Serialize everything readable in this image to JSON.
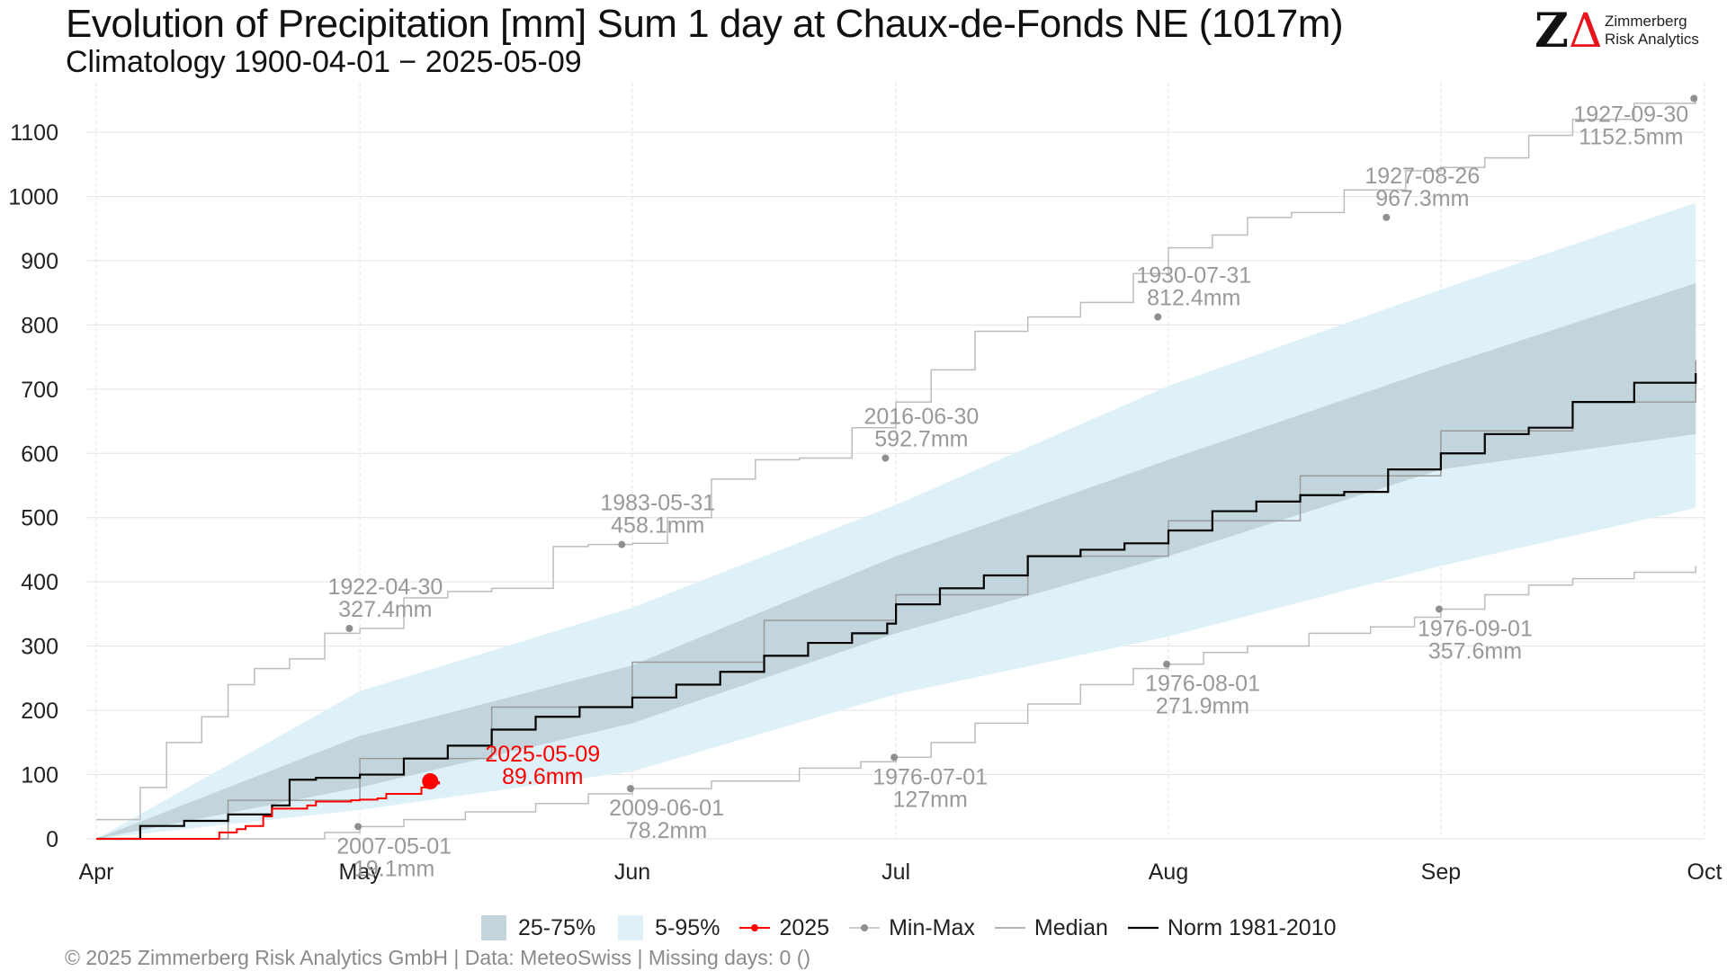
{
  "header": {
    "title": "Evolution of Precipitation [mm] Sum 1 day at Chaux-de-Fonds  NE (1017m)",
    "subtitle": "Climatology 1900-04-01 − 2025-05-09"
  },
  "logo": {
    "mark_z": "Z",
    "mark_delta": "Δ",
    "name_line1": "Zimmerberg",
    "name_line2": "Risk Analytics"
  },
  "footer": {
    "text": "©  2025 Zimmerberg Risk Analytics GmbH | Data: MeteoSwiss | Missing days: 0 ()"
  },
  "colors": {
    "band_25_75": "#c3d5dc",
    "band_5_95": "#dff1f8",
    "current": "#ff0000",
    "minmax": "#bdbdbd",
    "minmax_point": "#8f8f8f",
    "median": "#9a9a9a",
    "norm": "#000000",
    "annotation": "#999999"
  },
  "chart_data": {
    "type": "line",
    "x_axis": {
      "ticks": [
        "Apr",
        "May",
        "Jun",
        "Jul",
        "Aug",
        "Sep",
        "Oct"
      ],
      "tick_days": [
        0,
        30,
        61,
        91,
        122,
        153,
        183
      ]
    },
    "y_axis": {
      "ylim": [
        0,
        1150
      ],
      "ticks": [
        0,
        100,
        200,
        300,
        400,
        500,
        600,
        700,
        800,
        900,
        1000,
        1100
      ]
    },
    "grid": true,
    "legend": {
      "placement": "bottom",
      "items": [
        "25-75%",
        "5-95%",
        "2025",
        "Min-Max",
        "Median",
        "Norm 1981-2010"
      ]
    },
    "bands": {
      "p5_p95": {
        "day": [
          0,
          30,
          61,
          91,
          122,
          153,
          182
        ],
        "lower": [
          0,
          45,
          105,
          225,
          315,
          425,
          515
        ],
        "upper": [
          0,
          230,
          360,
          520,
          705,
          855,
          990
        ]
      },
      "p25_p75": {
        "day": [
          0,
          30,
          61,
          91,
          122,
          153,
          182
        ],
        "lower": [
          0,
          80,
          180,
          320,
          440,
          575,
          630
        ],
        "upper": [
          0,
          160,
          270,
          440,
          590,
          735,
          865
        ]
      }
    },
    "series": [
      {
        "name": "2025",
        "day": [
          0,
          13,
          14,
          16,
          17,
          19,
          20,
          24,
          25,
          29,
          30,
          32,
          33,
          37,
          38,
          39
        ],
        "values": [
          0,
          0,
          10,
          15,
          20,
          35,
          47,
          52,
          58,
          60,
          61,
          63,
          70,
          80,
          86,
          89.6
        ]
      },
      {
        "name": "Median",
        "day": [
          0,
          15,
          30,
          45,
          61,
          76,
          91,
          106,
          122,
          137,
          153,
          168,
          182
        ],
        "values": [
          0,
          60,
          125,
          205,
          275,
          340,
          380,
          440,
          495,
          565,
          635,
          680,
          745
        ]
      },
      {
        "name": "Norm 1981-2010",
        "day": [
          0,
          5,
          10,
          15,
          20,
          22,
          25,
          28,
          30,
          35,
          40,
          45,
          50,
          55,
          61,
          66,
          71,
          76,
          81,
          86,
          90,
          91,
          96,
          101,
          106,
          112,
          117,
          122,
          127,
          132,
          137,
          142,
          147,
          153,
          158,
          163,
          168,
          175,
          182
        ],
        "values": [
          0,
          20,
          28,
          38,
          52,
          92,
          95,
          95,
          100,
          125,
          145,
          170,
          190,
          205,
          220,
          240,
          260,
          285,
          305,
          320,
          335,
          365,
          390,
          410,
          440,
          450,
          460,
          480,
          510,
          525,
          535,
          540,
          575,
          600,
          630,
          640,
          680,
          710,
          725
        ]
      },
      {
        "name": "Min-Max (max)",
        "day": [
          0,
          5,
          8,
          12,
          15,
          18,
          22,
          26,
          30,
          35,
          40,
          45,
          52,
          56,
          61,
          65,
          70,
          75,
          80,
          86,
          91,
          95,
          100,
          106,
          112,
          118,
          122,
          127,
          131,
          136,
          142,
          149,
          153,
          158,
          163,
          168,
          175,
          182
        ],
        "values": [
          30,
          80,
          150,
          190,
          240,
          265,
          280,
          320,
          327.4,
          375,
          385,
          390,
          455,
          458.1,
          460,
          500,
          560,
          590,
          592.7,
          640,
          680,
          730,
          790,
          812.4,
          835,
          880,
          920,
          940,
          967.3,
          975,
          1010,
          1040,
          1045,
          1060,
          1095,
          1120,
          1145,
          1152.5
        ]
      },
      {
        "name": "Min-Max (min)",
        "day": [
          0,
          20,
          26,
          30,
          35,
          42,
          50,
          56,
          61,
          70,
          80,
          87,
          91,
          95,
          100,
          106,
          112,
          118,
          122,
          126,
          131,
          138,
          145,
          150,
          153,
          158,
          163,
          168,
          175,
          182
        ],
        "values": [
          0,
          0,
          10,
          19.1,
          30,
          42,
          55,
          70,
          78.2,
          90,
          110,
          120,
          127,
          150,
          180,
          210,
          240,
          265,
          271.9,
          290,
          300,
          320,
          330,
          345,
          357.6,
          380,
          395,
          405,
          415,
          425
        ]
      }
    ],
    "annotations": [
      {
        "label": "1922-04-30",
        "value": "327.4mm",
        "day": 28.8,
        "y": 327.4,
        "kind": "max"
      },
      {
        "label": "1983-05-31",
        "value": "458.1mm",
        "day": 59.8,
        "y": 458.1,
        "kind": "max"
      },
      {
        "label": "2016-06-30",
        "value": "592.7mm",
        "day": 89.8,
        "y": 592.7,
        "kind": "max"
      },
      {
        "label": "1930-07-31",
        "value": "812.4mm",
        "day": 120.8,
        "y": 812.4,
        "kind": "max"
      },
      {
        "label": "1927-08-26",
        "value": "967.3mm",
        "day": 146.8,
        "y": 967.3,
        "kind": "max"
      },
      {
        "label": "1927-09-30",
        "value": "1152.5mm",
        "day": 181.8,
        "y": 1152.5,
        "kind": "max"
      },
      {
        "label": "2007-05-01",
        "value": "19.1mm",
        "day": 29.8,
        "y": 19.1,
        "kind": "min"
      },
      {
        "label": "2009-06-01",
        "value": "78.2mm",
        "day": 60.8,
        "y": 78.2,
        "kind": "min"
      },
      {
        "label": "1976-07-01",
        "value": "127mm",
        "day": 90.8,
        "y": 127,
        "kind": "min"
      },
      {
        "label": "1976-08-01",
        "value": "271.9mm",
        "day": 121.8,
        "y": 271.9,
        "kind": "min"
      },
      {
        "label": "1976-09-01",
        "value": "357.6mm",
        "day": 152.8,
        "y": 357.6,
        "kind": "min"
      },
      {
        "label": "2025-05-09",
        "value": "89.6mm",
        "day": 38,
        "y": 89.6,
        "kind": "current"
      }
    ]
  }
}
